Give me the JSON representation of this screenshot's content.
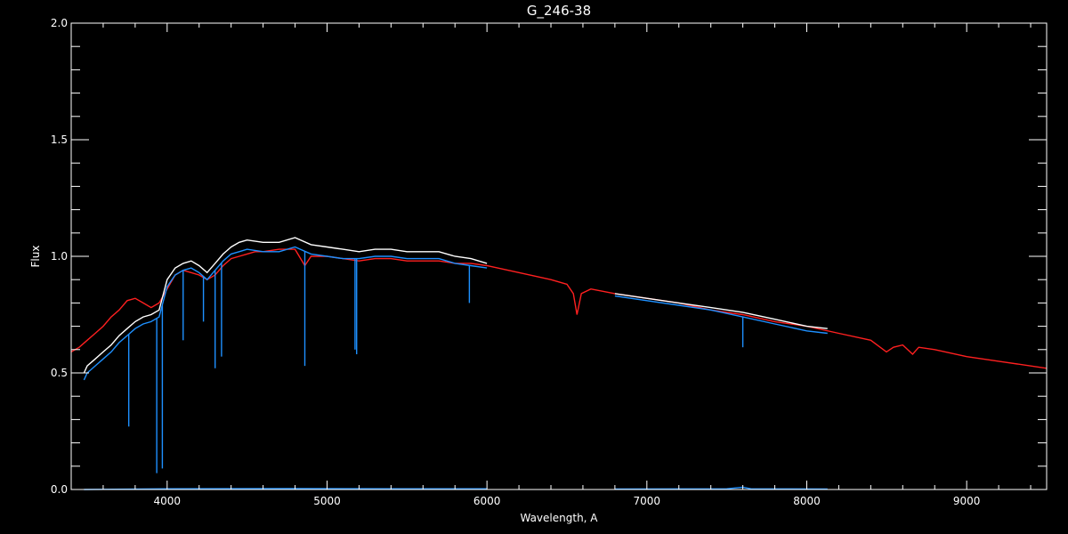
{
  "chart_data": {
    "type": "line",
    "title": "G_246-38",
    "xlabel": "Wavelength, A",
    "ylabel": "Flux",
    "xlim": [
      3400,
      9500
    ],
    "ylim": [
      0,
      2.0
    ],
    "x_ticks": [
      {
        "value": 4000,
        "label": "4000"
      },
      {
        "value": 5000,
        "label": "5000"
      },
      {
        "value": 6000,
        "label": "6000"
      },
      {
        "value": 7000,
        "label": "7000"
      },
      {
        "value": 8000,
        "label": "8000"
      },
      {
        "value": 9000,
        "label": "9000"
      }
    ],
    "y_ticks": [
      {
        "value": 0.0,
        "label": "0.0"
      },
      {
        "value": 0.5,
        "label": "0.5"
      },
      {
        "value": 1.0,
        "label": "1.0"
      },
      {
        "value": 1.5,
        "label": "1.5"
      },
      {
        "value": 2.0,
        "label": "2.0"
      }
    ],
    "grid": false,
    "colors": {
      "background": "#000000",
      "axes": "#ffffff",
      "observed_upper": "#ffffff",
      "observed": "#1e90ff",
      "model": "#ff2020",
      "error": "#1e90ff"
    },
    "series": [
      {
        "color": "#ff2020",
        "x": [
          3400,
          3450,
          3500,
          3550,
          3600,
          3650,
          3700,
          3750,
          3800,
          3850,
          3900,
          3950,
          4000,
          4050,
          4100,
          4150,
          4200,
          4250,
          4300,
          4350,
          4400,
          4450,
          4500,
          4550,
          4600,
          4700,
          4800,
          4861,
          4900,
          5000,
          5100,
          5200,
          5300,
          5400,
          5500,
          5600,
          5700,
          5800,
          5900,
          6000,
          6200,
          6400,
          6500,
          6540,
          6563,
          6590,
          6650,
          6800,
          7000,
          7200,
          7400,
          7600,
          7800,
          8000,
          8200,
          8400,
          8498,
          8542,
          8600,
          8662,
          8700,
          8800,
          9000,
          9200,
          9500
        ],
        "y": [
          0.59,
          0.61,
          0.64,
          0.67,
          0.7,
          0.74,
          0.77,
          0.81,
          0.82,
          0.8,
          0.78,
          0.8,
          0.86,
          0.92,
          0.94,
          0.93,
          0.92,
          0.9,
          0.92,
          0.96,
          0.99,
          1.0,
          1.01,
          1.02,
          1.02,
          1.03,
          1.03,
          0.96,
          1.0,
          1.0,
          0.99,
          0.98,
          0.99,
          0.99,
          0.98,
          0.98,
          0.98,
          0.97,
          0.97,
          0.96,
          0.93,
          0.9,
          0.88,
          0.84,
          0.75,
          0.84,
          0.86,
          0.84,
          0.82,
          0.8,
          0.77,
          0.75,
          0.72,
          0.7,
          0.67,
          0.64,
          0.59,
          0.61,
          0.62,
          0.58,
          0.61,
          0.6,
          0.57,
          0.55,
          0.52
        ]
      },
      {
        "color": "#ffffff",
        "x": [
          3480,
          3500,
          3550,
          3600,
          3650,
          3700,
          3750,
          3800,
          3850,
          3900,
          3950,
          4000,
          4050,
          4100,
          4150,
          4200,
          4250,
          4300,
          4350,
          4400,
          4450,
          4500,
          4600,
          4700,
          4800,
          4900,
          5000,
          5100,
          5200,
          5300,
          5400,
          5500,
          5600,
          5700,
          5800,
          5900,
          6000
        ],
        "y": [
          0.5,
          0.53,
          0.56,
          0.59,
          0.62,
          0.66,
          0.69,
          0.72,
          0.74,
          0.75,
          0.77,
          0.9,
          0.95,
          0.97,
          0.98,
          0.96,
          0.93,
          0.97,
          1.01,
          1.04,
          1.06,
          1.07,
          1.06,
          1.06,
          1.08,
          1.05,
          1.04,
          1.03,
          1.02,
          1.03,
          1.03,
          1.02,
          1.02,
          1.02,
          1.0,
          0.99,
          0.97
        ]
      },
      {
        "color": "#1e90ff",
        "x": [
          3480,
          3500,
          3550,
          3600,
          3650,
          3700,
          3750,
          3800,
          3850,
          3900,
          3950,
          4000,
          4050,
          4100,
          4150,
          4200,
          4250,
          4300,
          4350,
          4400,
          4450,
          4500,
          4600,
          4700,
          4800,
          4900,
          5000,
          5100,
          5200,
          5300,
          5400,
          5500,
          5600,
          5700,
          5800,
          5900,
          6000
        ],
        "y": [
          0.47,
          0.5,
          0.53,
          0.56,
          0.59,
          0.63,
          0.66,
          0.69,
          0.71,
          0.72,
          0.74,
          0.87,
          0.92,
          0.94,
          0.95,
          0.93,
          0.9,
          0.94,
          0.98,
          1.01,
          1.02,
          1.03,
          1.02,
          1.02,
          1.04,
          1.01,
          1.0,
          0.99,
          0.99,
          1.0,
          1.0,
          0.99,
          0.99,
          0.99,
          0.97,
          0.96,
          0.95
        ]
      },
      {
        "color": "#ffffff",
        "x": [
          6800,
          7000,
          7200,
          7400,
          7600,
          7800,
          8000,
          8130
        ],
        "y": [
          0.84,
          0.82,
          0.8,
          0.78,
          0.76,
          0.73,
          0.7,
          0.69
        ]
      },
      {
        "color": "#1e90ff",
        "x": [
          6800,
          7000,
          7200,
          7400,
          7600,
          7800,
          8000,
          8130
        ],
        "y": [
          0.83,
          0.81,
          0.79,
          0.77,
          0.74,
          0.71,
          0.68,
          0.67
        ]
      },
      {
        "color": "#1e90ff",
        "x": [
          3480,
          4000,
          4800,
          5500,
          6000
        ],
        "y": [
          0.0,
          0.003,
          0.004,
          0.003,
          0.003
        ]
      },
      {
        "color": "#1e90ff",
        "x": [
          6800,
          7500,
          7600,
          7650,
          8130
        ],
        "y": [
          0.002,
          0.003,
          0.01,
          0.003,
          0.002
        ]
      }
    ],
    "absorption_features": [
      {
        "x": 3760,
        "y": 0.27
      },
      {
        "x": 3935,
        "y": 0.07
      },
      {
        "x": 3970,
        "y": 0.09
      },
      {
        "x": 4100,
        "y": 0.64
      },
      {
        "x": 4227,
        "y": 0.72
      },
      {
        "x": 4300,
        "y": 0.52
      },
      {
        "x": 4340,
        "y": 0.57
      },
      {
        "x": 4861,
        "y": 0.53
      },
      {
        "x": 5175,
        "y": 0.6
      },
      {
        "x": 5185,
        "y": 0.58
      },
      {
        "x": 5890,
        "y": 0.8
      },
      {
        "x": 7600,
        "y": 0.61
      }
    ]
  }
}
